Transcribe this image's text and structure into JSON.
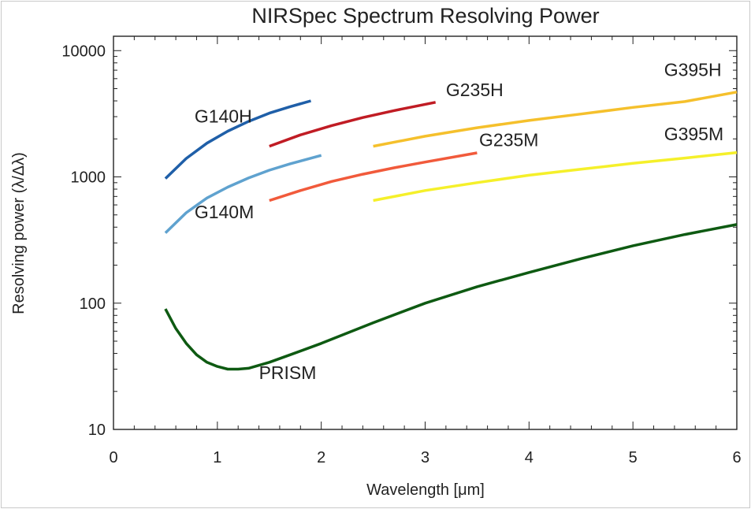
{
  "chart_data": {
    "type": "line",
    "title": "NIRSpec Spectrum Resolving Power",
    "xlabel": "Wavelength [μm]",
    "ylabel": "Resolving power (λ/Δλ)",
    "xlim": [
      0,
      6
    ],
    "ylim": [
      10,
      13000
    ],
    "yscale": "log",
    "x_ticks": [
      "0",
      "1",
      "2",
      "3",
      "4",
      "5",
      "6"
    ],
    "y_ticks": [
      "10",
      "100",
      "1000",
      "10000"
    ],
    "grid": false,
    "series": [
      {
        "name": "G140H",
        "color": "#1f5fa8",
        "x": [
          0.5,
          0.7,
          0.9,
          1.1,
          1.3,
          1.5,
          1.7,
          1.9
        ],
        "y": [
          970,
          1400,
          1850,
          2300,
          2750,
          3200,
          3600,
          4000
        ]
      },
      {
        "name": "G140M",
        "color": "#5fa2cf",
        "x": [
          0.5,
          0.7,
          0.9,
          1.1,
          1.3,
          1.5,
          1.7,
          2.0
        ],
        "y": [
          360,
          520,
          680,
          830,
          980,
          1130,
          1270,
          1480
        ]
      },
      {
        "name": "G235H",
        "color": "#c01c24",
        "x": [
          1.5,
          1.8,
          2.1,
          2.4,
          2.7,
          3.1
        ],
        "y": [
          1750,
          2150,
          2550,
          2950,
          3350,
          3900
        ]
      },
      {
        "name": "G235M",
        "color": "#f15a3b",
        "x": [
          1.5,
          1.8,
          2.1,
          2.4,
          2.7,
          3.0,
          3.5
        ],
        "y": [
          650,
          780,
          920,
          1050,
          1180,
          1310,
          1550
        ]
      },
      {
        "name": "G395H",
        "color": "#f5c02c",
        "x": [
          2.5,
          3.0,
          3.5,
          4.0,
          4.5,
          5.0,
          5.5,
          6.0
        ],
        "y": [
          1750,
          2100,
          2450,
          2800,
          3150,
          3550,
          3950,
          4700
        ]
      },
      {
        "name": "G395M",
        "color": "#f5f02a",
        "x": [
          2.5,
          3.0,
          3.5,
          4.0,
          4.5,
          5.0,
          5.5,
          6.0
        ],
        "y": [
          650,
          780,
          900,
          1030,
          1150,
          1280,
          1410,
          1560
        ]
      },
      {
        "name": "PRISM",
        "color": "#0e5a12",
        "x": [
          0.5,
          0.6,
          0.7,
          0.8,
          0.9,
          1.0,
          1.1,
          1.2,
          1.3,
          1.5,
          1.7,
          2.0,
          2.5,
          3.0,
          3.5,
          4.0,
          4.5,
          5.0,
          5.5,
          6.0
        ],
        "y": [
          90,
          63,
          48,
          39,
          34,
          31.5,
          30,
          30,
          30.5,
          34,
          39,
          48,
          70,
          100,
          135,
          175,
          225,
          285,
          350,
          420
        ]
      }
    ],
    "labels": [
      {
        "text": "G140H",
        "x": 0.78,
        "y": 2700
      },
      {
        "text": "G140M",
        "x": 0.78,
        "y": 470
      },
      {
        "text": "G235H",
        "x": 3.2,
        "y": 4350
      },
      {
        "text": "G235M",
        "x": 3.52,
        "y": 1750
      },
      {
        "text": "G395H",
        "x": 5.3,
        "y": 6300
      },
      {
        "text": "G395M",
        "x": 5.3,
        "y": 1950
      },
      {
        "text": "PRISM",
        "x": 1.4,
        "y": 25
      }
    ]
  }
}
